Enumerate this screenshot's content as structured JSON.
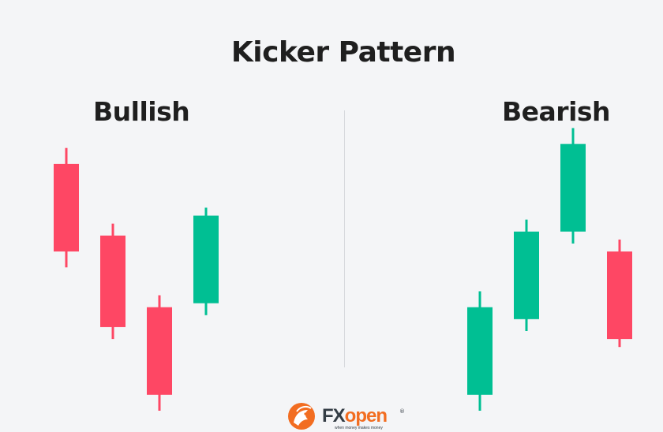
{
  "title": "Kicker Pattern",
  "colors": {
    "bull": "#00bf93",
    "bear": "#fe4764",
    "divider": "#d6d8dc",
    "background": "#f4f5f7"
  },
  "logo": {
    "brand_fx": "FX",
    "brand_open": "open",
    "registered": "®",
    "tagline": "when money makes money",
    "icon": "dragon-logo-icon"
  },
  "chart_data": [
    {
      "type": "candlestick",
      "title": "Bullish",
      "candles": [
        {
          "open": 6.2,
          "close": 4.0,
          "high": 6.6,
          "low": 3.6,
          "direction": "bearish"
        },
        {
          "open": 4.4,
          "close": 2.1,
          "high": 4.7,
          "low": 1.8,
          "direction": "bearish"
        },
        {
          "open": 2.6,
          "close": 0.4,
          "high": 2.9,
          "low": 0.0,
          "direction": "bearish"
        },
        {
          "open": 2.7,
          "close": 4.9,
          "high": 5.1,
          "low": 2.4,
          "direction": "bullish"
        }
      ]
    },
    {
      "type": "candlestick",
      "title": "Bearish",
      "candles": [
        {
          "open": 0.4,
          "close": 2.6,
          "high": 3.0,
          "low": 0.0,
          "direction": "bullish"
        },
        {
          "open": 2.3,
          "close": 4.5,
          "high": 4.8,
          "low": 2.0,
          "direction": "bullish"
        },
        {
          "open": 4.5,
          "close": 6.7,
          "high": 7.1,
          "low": 4.2,
          "direction": "bullish"
        },
        {
          "open": 4.0,
          "close": 1.8,
          "high": 4.3,
          "low": 1.6,
          "direction": "bearish"
        }
      ]
    }
  ]
}
